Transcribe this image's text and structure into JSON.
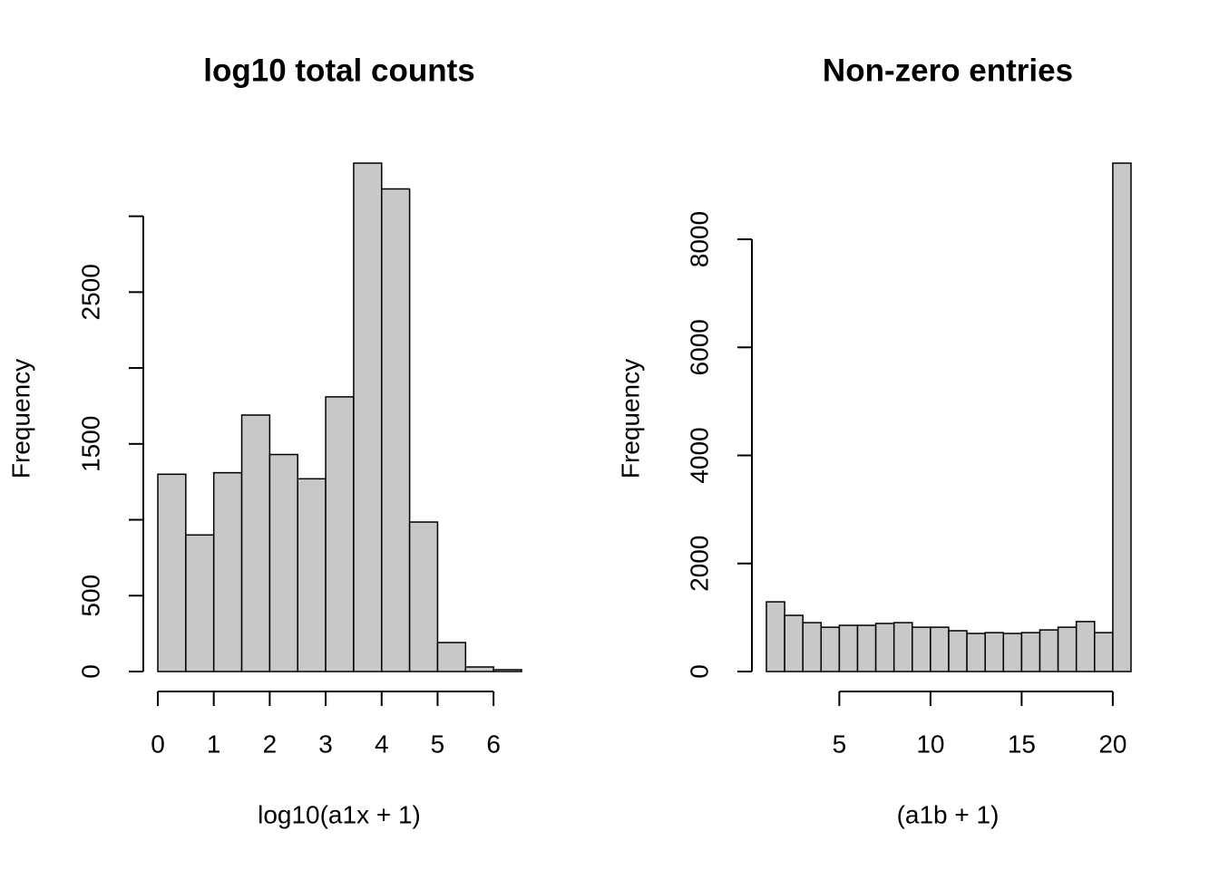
{
  "chart_data": [
    {
      "type": "histogram",
      "title": "log10 total counts",
      "xlabel": "log10(a1x + 1)",
      "ylabel": "Frequency",
      "bins": [
        0,
        0.5,
        1,
        1.5,
        2,
        2.5,
        3,
        3.5,
        4,
        4.5,
        5,
        5.5,
        6,
        6.5
      ],
      "values": [
        1300,
        900,
        1310,
        1690,
        1430,
        1270,
        1810,
        3350,
        3180,
        985,
        191,
        30,
        12
      ],
      "color": "#c8c8c8",
      "xlim": [
        0,
        6.5
      ],
      "ylim": [
        0,
        3350
      ],
      "xticks": [
        0,
        1,
        2,
        3,
        4,
        5,
        6
      ],
      "yticks": [
        0,
        500,
        1500,
        2500
      ],
      "yticks_unlabeled": [
        1000,
        2000,
        3000
      ]
    },
    {
      "type": "histogram",
      "title": "Non-zero entries",
      "xlabel": "(a1b + 1)",
      "ylabel": "Frequency",
      "bins": [
        1,
        2,
        3,
        4,
        5,
        6,
        7,
        8,
        9,
        10,
        11,
        12,
        13,
        14,
        15,
        16,
        17,
        18,
        19,
        20,
        21
      ],
      "values": [
        1290,
        1040,
        905,
        820,
        855,
        855,
        890,
        905,
        820,
        820,
        755,
        705,
        720,
        705,
        720,
        770,
        820,
        925,
        720,
        9410
      ],
      "color": "#c8c8c8",
      "xlim": [
        1,
        21
      ],
      "ylim": [
        0,
        9410
      ],
      "xticks": [
        5,
        10,
        15,
        20
      ],
      "yticks": [
        0,
        2000,
        4000,
        6000,
        8000
      ]
    }
  ]
}
